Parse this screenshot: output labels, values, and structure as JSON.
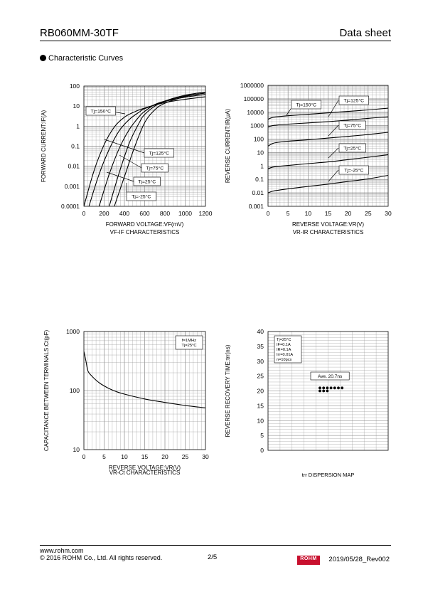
{
  "header": {
    "title": "RB060MM-30TF",
    "doc_type": "Data sheet"
  },
  "section": {
    "title": "Characteristic Curves"
  },
  "footer": {
    "url": "www.rohm.com",
    "copyright": "© 2016 ROHM Co., Ltd. All rights reserved.",
    "page": "2/5",
    "logo_text": "ROHM",
    "date_rev": "2019/05/28_Rev002"
  },
  "colors": {
    "logo_red": "#c8102e",
    "grid": "#9a9a9a",
    "plot_bg": "#ffffff",
    "curve": "#000000"
  },
  "chart_data": [
    {
      "type": "line",
      "xlabel": "FORWARD VOLTAGE:VF(mV)",
      "ylabel": "FORWARD CURRENT:IF(A)",
      "caption": "VF-IF CHARACTERISTICS",
      "xlim": [
        0,
        1200
      ],
      "ylim": [
        0.0001,
        100
      ],
      "yscale": "log",
      "x_ticks": [
        "0",
        "200",
        "400",
        "600",
        "800",
        "1000",
        "1200"
      ],
      "y_ticks": [
        "0.0001",
        "0.001",
        "0.01",
        "0.1",
        "1",
        "10",
        "100"
      ],
      "grid": true,
      "series": [
        {
          "name": "Tj=150°C",
          "x": [
            0,
            100,
            200,
            300,
            400,
            500,
            600,
            800,
            1000,
            1200
          ],
          "y": [
            0.0001,
            0.006,
            0.12,
            0.9,
            2.8,
            5.2,
            8,
            15,
            22,
            29
          ]
        },
        {
          "name": "Tj=125°C",
          "x": [
            50,
            150,
            250,
            350,
            450,
            550,
            600,
            800,
            1000,
            1200
          ],
          "y": [
            0.0001,
            0.004,
            0.07,
            0.6,
            2.2,
            5.2,
            7.5,
            17,
            28,
            38
          ]
        },
        {
          "name": "Tj=75°C",
          "x": [
            150,
            250,
            350,
            450,
            550,
            600,
            700,
            800,
            1000,
            1200
          ],
          "y": [
            0.0001,
            0.004,
            0.08,
            0.7,
            3.2,
            5.5,
            12,
            18,
            32,
            45
          ]
        },
        {
          "name": "Tj=25°C",
          "x": [
            250,
            350,
            450,
            550,
            600,
            700,
            800,
            1000,
            1200
          ],
          "y": [
            0.0001,
            0.005,
            0.15,
            1.6,
            3.8,
            10,
            18,
            35,
            50
          ]
        },
        {
          "name": "Tj=-25°C",
          "x": [
            300,
            400,
            500,
            600,
            700,
            800,
            1000,
            1200
          ],
          "y": [
            0.0001,
            0.003,
            0.09,
            1.5,
            6.5,
            14,
            30,
            45
          ]
        }
      ]
    },
    {
      "type": "line",
      "xlabel": "REVERSE VOLTAGE:VR(V)",
      "ylabel": "REVERSE CURRENT:IR(μA)",
      "caption": "VR-IR CHARACTERISTICS",
      "xlim": [
        0,
        30
      ],
      "ylim": [
        0.001,
        1000000
      ],
      "yscale": "log",
      "x_ticks": [
        "0",
        "5",
        "10",
        "15",
        "20",
        "25",
        "30"
      ],
      "y_ticks": [
        "0.001",
        "0.01",
        "0.1",
        "1",
        "10",
        "100",
        "1000",
        "10000",
        "100000",
        "1000000"
      ],
      "grid": true,
      "series": [
        {
          "name": "Tj=150°C",
          "x": [
            0,
            1,
            2,
            5,
            10,
            15,
            20,
            25,
            30
          ],
          "y": [
            3000,
            4000,
            4500,
            5500,
            7000,
            9000,
            11500,
            15000,
            20000
          ]
        },
        {
          "name": "Tj=125°C",
          "x": [
            0,
            1,
            2,
            5,
            10,
            15,
            20,
            25,
            30
          ],
          "y": [
            800,
            1000,
            1100,
            1300,
            1600,
            2000,
            2600,
            3500,
            4500
          ]
        },
        {
          "name": "Tj=75°C",
          "x": [
            0,
            1,
            2,
            5,
            10,
            15,
            20,
            25,
            30
          ],
          "y": [
            30,
            45,
            55,
            70,
            90,
            120,
            160,
            220,
            320
          ]
        },
        {
          "name": "Tj=25°C",
          "x": [
            0,
            1,
            2,
            5,
            10,
            15,
            20,
            25,
            30
          ],
          "y": [
            0.6,
            0.8,
            0.9,
            1.1,
            1.5,
            2,
            3,
            4.5,
            7
          ]
        },
        {
          "name": "Tj=-25°C",
          "x": [
            0,
            1,
            2,
            5,
            10,
            15,
            20,
            25,
            30
          ],
          "y": [
            0.01,
            0.013,
            0.015,
            0.02,
            0.03,
            0.045,
            0.07,
            0.11,
            0.2
          ]
        }
      ]
    },
    {
      "type": "line",
      "xlabel": "REVERSE VOLTAGE:VR(V)",
      "ylabel": "CAPACITANCE BETWEEN TERMINALS:Ct(pF)",
      "caption": "VR-Ct CHARACTERISTICS",
      "xlim": [
        0,
        30
      ],
      "ylim": [
        10,
        1000
      ],
      "yscale": "log",
      "x_ticks": [
        "0",
        "5",
        "10",
        "15",
        "20",
        "25",
        "30"
      ],
      "y_ticks": [
        "10",
        "100",
        "1000"
      ],
      "grid": true,
      "legend_lines": [
        "f=1MHz",
        "Tj=25°C"
      ],
      "series": [
        {
          "x": [
            0,
            0.5,
            1,
            2,
            3,
            4,
            5,
            6,
            8,
            10,
            15,
            20,
            25,
            30
          ],
          "y": [
            460,
            320,
            215,
            175,
            150,
            132,
            120,
            110,
            96,
            87,
            72,
            63,
            56,
            51
          ]
        }
      ]
    },
    {
      "type": "scatter",
      "ylabel": "REVERSE RECOVERY TIME:trr(ns)",
      "caption": "trr DISPERSION MAP",
      "ylim": [
        0,
        40
      ],
      "y_ticks": [
        "0",
        "5",
        "10",
        "15",
        "20",
        "25",
        "30",
        "35",
        "40"
      ],
      "grid": true,
      "conditions": [
        "Tj=25°C",
        "IF=0.1A",
        "IR=0.1A",
        "Irr=0.01A",
        "n=10pcs"
      ],
      "average_label": "Ave. 20.7ns",
      "values": [
        21.0,
        21.0,
        21.0,
        21.0,
        21.0,
        21.0,
        21.0,
        20.0,
        20.0,
        20.0
      ]
    }
  ]
}
